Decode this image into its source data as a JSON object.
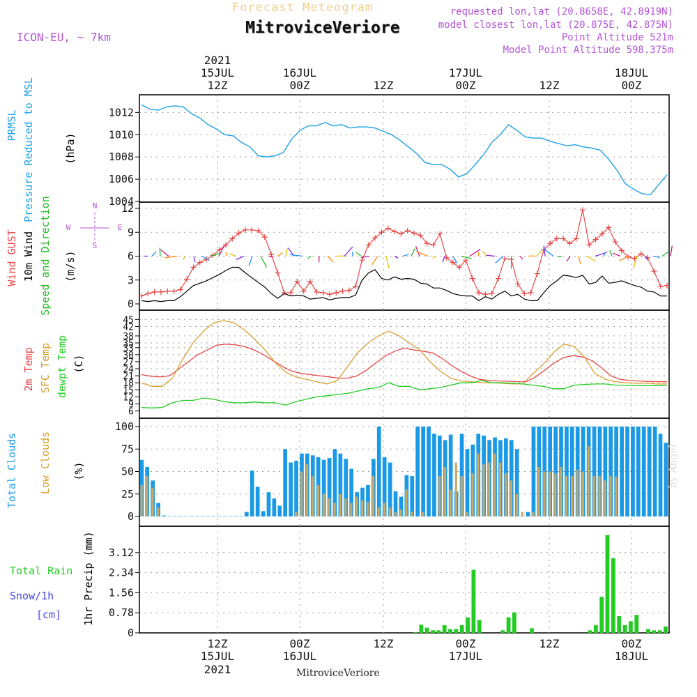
{
  "header": {
    "subtitle": "Forecast Meteogram",
    "station": "MitroviceVeriore",
    "model": "ICON-EU, ~ 7km",
    "requested": "requested lon,lat (20.8658E, 42.8919N)",
    "closest": "model closest lon,lat (20.875E, 42.875N)",
    "point_alt": "Point Altitude 521m",
    "model_alt": "Model Point Altitude 598.375m",
    "credit": "by Angel",
    "bottom_station": "MitroviceVeriore"
  },
  "colors": {
    "pressure": "#1ea0e6",
    "gust": "#e64646",
    "wind": "#000000",
    "dir": "#22bb22",
    "temp2m": "#e64646",
    "sfc": "#d8a030",
    "dewpt": "#22cc22",
    "total_cloud": "#1a9ae6",
    "low_cloud": "#c8a868",
    "rain": "#22cc22",
    "snow": "#4646e6",
    "meta": "#b455d6"
  },
  "chart_data": [
    {
      "type": "line",
      "panel": "pressure",
      "ylabel_lines": [
        "PRMSL",
        "Pressure Reduced to MSL"
      ],
      "unit": "(hPa)",
      "ylim": [
        1004,
        1012.9
      ],
      "yticks": [
        "1004",
        "1006",
        "1008",
        "1010",
        "1012"
      ],
      "grid": true,
      "series": [
        {
          "x": [
            0,
            1,
            2,
            3,
            4,
            5,
            6,
            7,
            8,
            9,
            10,
            11,
            12,
            13,
            14,
            15,
            16,
            17,
            18,
            19,
            20,
            21,
            22,
            23,
            24,
            25,
            26,
            27,
            28,
            29,
            30,
            31,
            32,
            33,
            34,
            35,
            36,
            37,
            38,
            39,
            40,
            41,
            42,
            43,
            44,
            45,
            46,
            47,
            48,
            49,
            50,
            51,
            52,
            53,
            54,
            55,
            56,
            57,
            58,
            59,
            60,
            61,
            62,
            63
          ],
          "values": [
            1012.7,
            1012.3,
            1012.2,
            1012.5,
            1012.6,
            1012.5,
            1011.9,
            1011.5,
            1010.9,
            1010.5,
            1010.0,
            1009.9,
            1009.3,
            1008.9,
            1008.1,
            1008.0,
            1008.1,
            1008.4,
            1009.6,
            1010.4,
            1010.8,
            1010.8,
            1011.1,
            1010.8,
            1010.9,
            1010.6,
            1010.7,
            1010.7,
            1010.6,
            1010.3,
            1010.0,
            1009.5,
            1008.9,
            1008.3,
            1007.5,
            1007.3,
            1007.3,
            1006.9,
            1006.2,
            1006.5,
            1007.3,
            1008.2,
            1009.3,
            1010.0,
            1010.9,
            1010.4,
            1009.8,
            1009.7,
            1009.7,
            1009.4,
            1009.2,
            1009.0,
            1009.1,
            1008.9,
            1008.8,
            1008.6,
            1007.8,
            1006.8,
            1005.6,
            1005.1,
            1004.7,
            1004.6,
            1005.5,
            1006.4
          ]
        }
      ]
    },
    {
      "type": "line",
      "panel": "wind",
      "ylabel_lines": [
        "Wind GUST",
        "10m Wind",
        "Speed and Direction"
      ],
      "unit": "(m/s)",
      "compass": [
        "N",
        "S",
        "W",
        "E"
      ],
      "ylim": [
        0,
        12
      ],
      "yticks": [
        "0",
        "3",
        "6",
        "9",
        "12"
      ],
      "grid": true,
      "series": [
        {
          "name": "Wind GUST",
          "values": [
            1.0,
            1.3,
            1.5,
            1.5,
            1.6,
            1.6,
            1.8,
            3.1,
            4.6,
            5.2,
            5.6,
            6.1,
            6.8,
            7.4,
            8.2,
            8.9,
            9.3,
            9.3,
            9.2,
            8.4,
            6.2,
            3.9,
            1.4,
            1.4,
            2.8,
            1.6,
            2.8,
            1.5,
            1.4,
            1.2,
            1.4,
            1.6,
            1.7,
            2.2,
            5.5,
            7.4,
            8.3,
            9.0,
            9.5,
            9.1,
            8.8,
            9.2,
            8.9,
            8.6,
            7.6,
            7.4,
            8.8,
            5.8,
            5.2,
            4.6,
            5.5,
            3.2,
            1.4,
            1.2,
            1.3,
            3.2,
            5.7,
            5.6,
            2.5,
            1.3,
            1.4,
            3.8,
            6.8,
            7.6,
            8.2,
            8.2,
            7.6,
            8.2,
            11.8,
            7.4,
            8.1,
            8.8,
            9.6,
            7.8,
            6.7,
            5.9,
            5.7,
            6.3,
            5.8,
            4.1,
            2.2,
            2.3
          ],
          "marker": "+"
        },
        {
          "name": "10m Wind",
          "values": [
            0.4,
            0.3,
            0.4,
            0.3,
            0.4,
            0.4,
            0.9,
            1.6,
            2.3,
            2.6,
            2.9,
            3.3,
            3.7,
            4.2,
            4.6,
            4.6,
            3.9,
            3.3,
            2.7,
            2.1,
            1.3,
            0.7,
            1.3,
            1.0,
            1.1,
            1.0,
            0.6,
            0.7,
            0.8,
            0.5,
            0.7,
            0.8,
            0.8,
            1.1,
            3.0,
            3.9,
            4.3,
            3.2,
            3.0,
            3.4,
            3.1,
            3.2,
            3.1,
            2.6,
            2.5,
            2.0,
            2.0,
            1.7,
            1.3,
            1.1,
            1.0,
            1.0,
            0.4,
            0.9,
            0.6,
            1.2,
            1.6,
            1.0,
            1.2,
            0.6,
            0.4,
            0.4,
            1.4,
            2.3,
            2.9,
            3.6,
            3.5,
            3.3,
            3.6,
            2.5,
            2.7,
            3.5,
            2.6,
            2.7,
            2.9,
            2.6,
            2.3,
            2.1,
            1.6,
            1.5,
            1.0,
            1.0
          ]
        }
      ]
    },
    {
      "type": "line",
      "panel": "temperature",
      "ylabel_lines": [
        "2m Temp",
        "SFC Temp",
        "dewpt Temp"
      ],
      "unit": "(C)",
      "ylim": [
        5,
        46
      ],
      "yticks": [
        "6",
        "9",
        "12",
        "15",
        "18",
        "21",
        "24",
        "27",
        "30",
        "33",
        "35",
        "38",
        "42",
        "45"
      ],
      "grid": true,
      "series": [
        {
          "name": "2m Temp",
          "values": [
            21.5,
            20.8,
            20.5,
            21.0,
            24.0,
            27.0,
            30.0,
            32.0,
            34.0,
            34.5,
            34.2,
            33.5,
            32.0,
            30.0,
            27.5,
            25.0,
            23.0,
            22.0,
            21.5,
            21.0,
            20.5,
            20.0,
            20.0,
            21.0,
            23.5,
            26.5,
            29.5,
            31.5,
            32.8,
            32.0,
            31.5,
            30.8,
            28.5,
            25.5,
            23.0,
            21.0,
            19.5,
            19.0,
            18.8,
            18.7,
            18.5,
            18.5,
            20.5,
            23.5,
            26.5,
            28.8,
            29.6,
            29.0,
            27.5,
            24.5,
            21.0,
            19.5,
            19.0,
            18.8,
            18.6,
            18.5,
            18.5
          ]
        },
        {
          "name": "SFC Temp",
          "values": [
            18.0,
            16.5,
            16.5,
            20.0,
            28.0,
            35.0,
            40.0,
            43.5,
            44.5,
            43.5,
            40.5,
            36.5,
            32.0,
            26.5,
            22.5,
            20.5,
            19.5,
            18.5,
            17.5,
            19.0,
            25.0,
            31.0,
            35.0,
            38.0,
            40.0,
            38.0,
            35.0,
            32.0,
            27.0,
            23.0,
            20.0,
            18.8,
            18.5,
            18.0,
            18.0,
            17.8,
            17.5,
            17.5,
            22.0,
            26.0,
            31.0,
            34.5,
            33.5,
            29.0,
            22.0,
            19.5,
            18.5,
            18.0,
            17.8,
            17.8,
            17.5,
            17.5
          ]
        },
        {
          "name": "dewpt Temp",
          "values": [
            7.5,
            7.3,
            7.5,
            9.5,
            10.5,
            10.5,
            11.5,
            11.0,
            10.0,
            9.5,
            9.5,
            9.8,
            9.5,
            9.5,
            8.5,
            10.0,
            11.0,
            12.0,
            12.5,
            13.0,
            13.5,
            14.5,
            15.5,
            16.0,
            18.0,
            16.5,
            16.5,
            15.0,
            15.5,
            16.0,
            17.0,
            18.0,
            18.0,
            19.0,
            18.0,
            18.0,
            17.8,
            17.5,
            17.0,
            16.5,
            15.5,
            15.5,
            17.0,
            17.3,
            17.5,
            17.5,
            17.0,
            17.0,
            16.8,
            16.8,
            16.8,
            17.0
          ]
        }
      ]
    },
    {
      "type": "bar",
      "panel": "clouds",
      "ylabel_lines": [
        "Total Clouds",
        "Low Clouds"
      ],
      "unit": "(%)",
      "ylim": [
        0,
        100
      ],
      "yticks": [
        "0",
        "25",
        "50",
        "75",
        "100"
      ],
      "grid": true,
      "series": [
        {
          "name": "Total Clouds",
          "values": [
            63,
            55,
            40,
            15,
            1,
            0,
            0,
            0,
            0,
            0,
            0,
            0,
            0,
            0,
            0,
            0,
            0,
            0,
            0,
            5,
            51,
            33,
            6,
            27,
            20,
            12,
            75,
            60,
            62,
            70,
            70,
            68,
            66,
            63,
            65,
            75,
            70,
            64,
            53,
            27,
            32,
            35,
            64,
            100,
            66,
            60,
            28,
            22,
            46,
            45,
            100,
            100,
            100,
            92,
            90,
            85,
            91,
            28,
            92,
            75,
            80,
            92,
            90,
            85,
            88,
            85,
            87,
            85,
            75,
            0,
            5,
            100,
            100,
            100,
            100,
            100,
            100,
            100,
            100,
            100,
            100,
            100,
            100,
            100,
            100,
            100,
            100,
            100,
            100,
            100,
            100,
            100,
            100,
            100,
            92,
            82
          ]
        },
        {
          "name": "Low Clouds",
          "values": [
            35,
            45,
            32,
            10,
            0,
            0,
            0,
            0,
            0,
            0,
            0,
            0,
            0,
            0,
            0,
            0,
            0,
            0,
            0,
            0,
            0,
            0,
            0,
            0,
            0,
            0,
            0,
            0,
            5,
            50,
            58,
            45,
            35,
            25,
            20,
            15,
            25,
            20,
            15,
            22,
            18,
            16,
            45,
            10,
            15,
            10,
            5,
            8,
            30,
            5,
            0,
            5,
            0,
            0,
            45,
            55,
            30,
            60,
            45,
            5,
            48,
            70,
            58,
            60,
            70,
            60,
            48,
            40,
            25,
            5,
            0,
            5,
            55,
            50,
            50,
            48,
            55,
            45,
            45,
            52,
            50,
            78,
            45,
            45,
            40,
            45,
            44
          ]
        }
      ]
    },
    {
      "type": "bar",
      "panel": "precip",
      "ylabel_lines": [
        "Total  Rain",
        "Snow/1h",
        "[cm]"
      ],
      "unit": "1hr Precip (mm)",
      "ylim": [
        0,
        3.9
      ],
      "yticks": [
        "0",
        "0.78",
        "1.56",
        "2.34",
        "3.12"
      ],
      "grid": true,
      "series": [
        {
          "name": "Total Rain",
          "values": [
            0,
            0,
            0,
            0,
            0,
            0,
            0,
            0,
            0,
            0,
            0,
            0,
            0,
            0,
            0,
            0,
            0,
            0,
            0,
            0,
            0,
            0,
            0,
            0,
            0,
            0,
            0,
            0,
            0,
            0,
            0,
            0,
            0,
            0,
            0,
            0,
            0,
            0,
            0,
            0,
            0,
            0,
            0,
            0,
            0,
            0,
            0,
            0.02,
            0.32,
            0.2,
            0.1,
            0.1,
            0.3,
            0.15,
            0.15,
            0.3,
            0.6,
            2.45,
            0.5,
            0,
            0,
            0,
            0.1,
            0.6,
            0.8,
            0,
            0,
            0.18,
            0,
            0,
            0,
            0,
            0,
            0,
            0,
            0,
            0,
            0.1,
            0.3,
            1.4,
            3.8,
            2.9,
            0.65,
            0.3,
            0.45,
            0.7,
            0,
            0.15,
            0.1,
            0.1,
            0.25
          ]
        }
      ]
    }
  ],
  "time_axis": {
    "top": [
      {
        "label": "12Z",
        "date": "15JUL",
        "year": "2021"
      },
      {
        "label": "00Z",
        "date": "16JUL"
      },
      {
        "label": "12Z",
        "date": ""
      },
      {
        "label": "00Z",
        "date": "17JUL"
      },
      {
        "label": "12Z",
        "date": ""
      },
      {
        "label": "00Z",
        "date": "18JUL"
      }
    ],
    "bottom": [
      {
        "label": "12Z",
        "date": "15JUL",
        "year": "2021"
      },
      {
        "label": "00Z",
        "date": "16JUL"
      },
      {
        "label": "12Z",
        "date": ""
      },
      {
        "label": "00Z",
        "date": "17JUL"
      },
      {
        "label": "12Z",
        "date": ""
      },
      {
        "label": "00Z",
        "date": "18JUL"
      }
    ]
  }
}
